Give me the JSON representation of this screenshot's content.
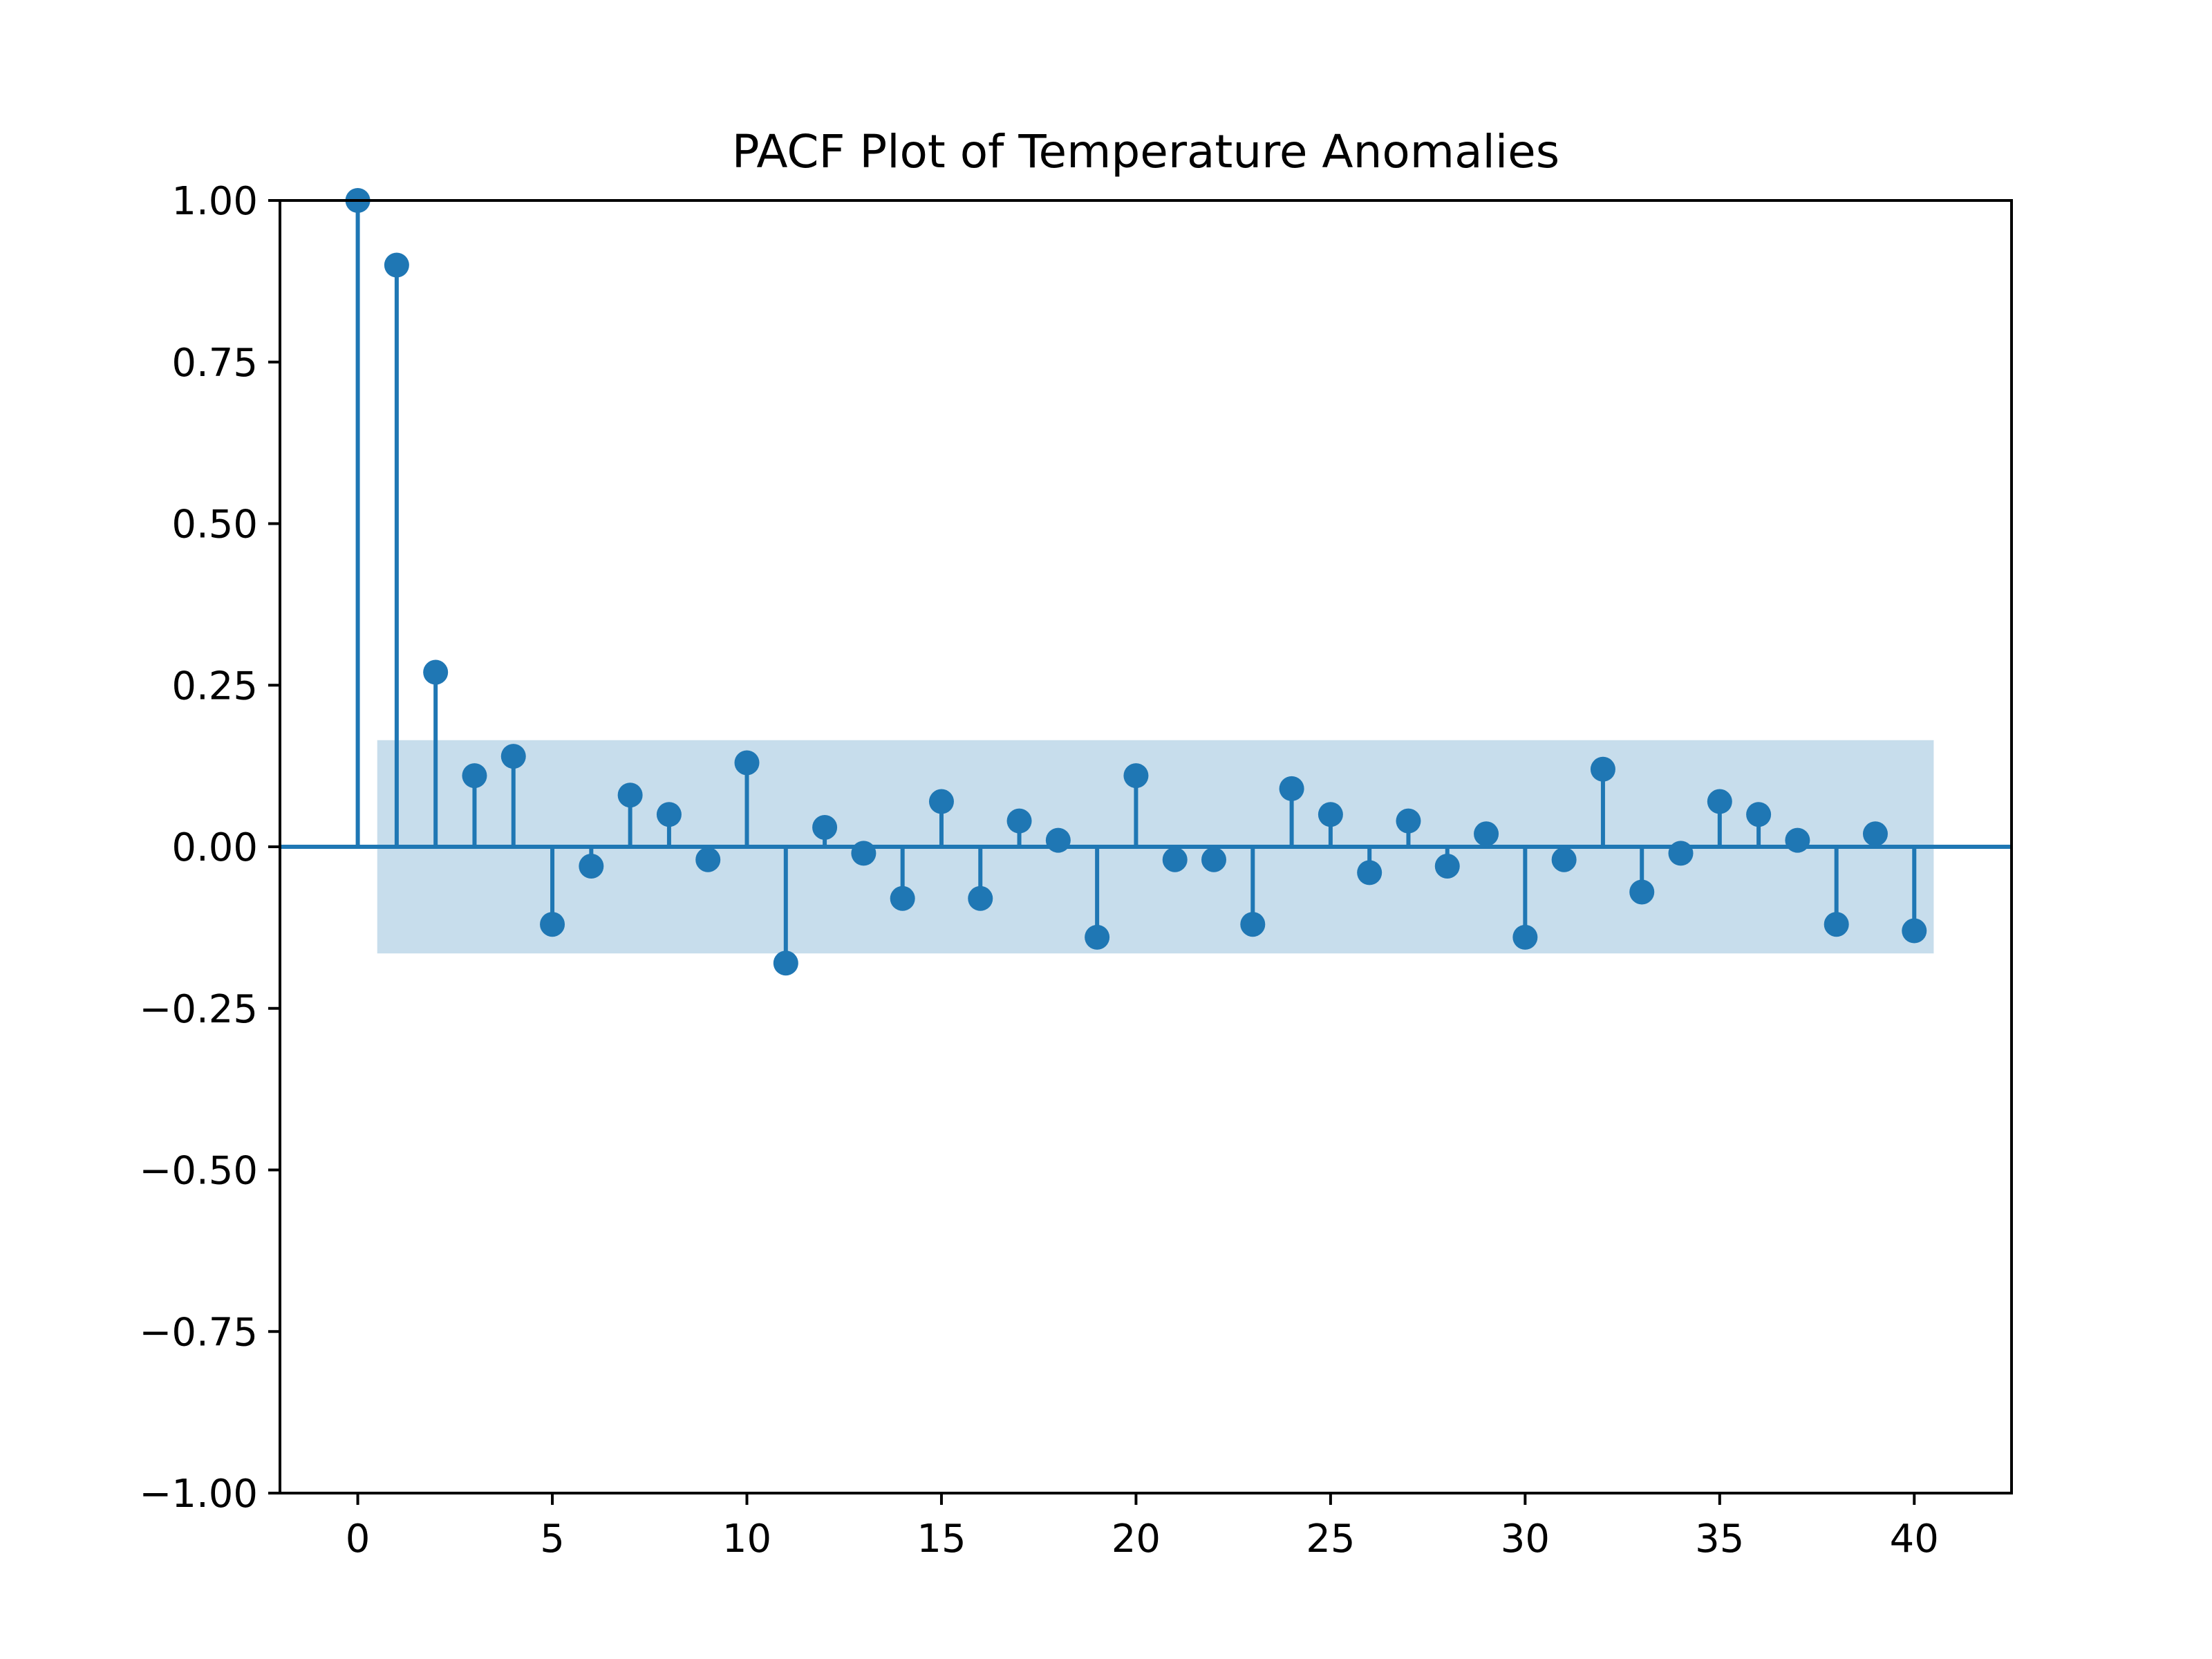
{
  "chart_data": {
    "type": "stem",
    "title": "PACF Plot of Temperature Anomalies",
    "xlabel": "",
    "ylabel": "",
    "xlim": [
      -2,
      42.5
    ],
    "ylim": [
      -1.0,
      1.0
    ],
    "x_ticks": [
      0,
      5,
      10,
      15,
      20,
      25,
      30,
      35,
      40
    ],
    "x_tick_labels": [
      "0",
      "5",
      "10",
      "15",
      "20",
      "25",
      "30",
      "35",
      "40"
    ],
    "y_ticks": [
      1.0,
      0.75,
      0.5,
      0.25,
      0.0,
      -0.25,
      -0.5,
      -0.75,
      -1.0
    ],
    "y_tick_labels": [
      "1.00",
      "0.75",
      "0.50",
      "0.25",
      "0.00",
      "−0.25",
      "−0.50",
      "−0.75",
      "−1.00"
    ],
    "grid": false,
    "legend": "none",
    "color": "#1f77b4",
    "confidence_band": {
      "x_range": [
        0.5,
        40.5
      ],
      "upper": 0.165,
      "lower": -0.165,
      "color": "#1f77b4",
      "opacity": 0.25
    },
    "lags": [
      0,
      1,
      2,
      3,
      4,
      5,
      6,
      7,
      8,
      9,
      10,
      11,
      12,
      13,
      14,
      15,
      16,
      17,
      18,
      19,
      20,
      21,
      22,
      23,
      24,
      25,
      26,
      27,
      28,
      29,
      30,
      31,
      32,
      33,
      34,
      35,
      36,
      37,
      38,
      39,
      40
    ],
    "values": [
      1.0,
      0.9,
      0.27,
      0.11,
      0.14,
      -0.12,
      -0.03,
      0.08,
      0.05,
      -0.02,
      0.13,
      -0.18,
      0.03,
      -0.01,
      -0.08,
      0.07,
      -0.08,
      0.04,
      0.01,
      -0.14,
      0.11,
      -0.02,
      -0.02,
      -0.12,
      0.09,
      0.05,
      -0.04,
      0.04,
      -0.03,
      0.02,
      -0.14,
      -0.02,
      0.12,
      -0.07,
      -0.01,
      0.07,
      0.05,
      0.01,
      -0.12,
      0.02,
      -0.13
    ]
  }
}
